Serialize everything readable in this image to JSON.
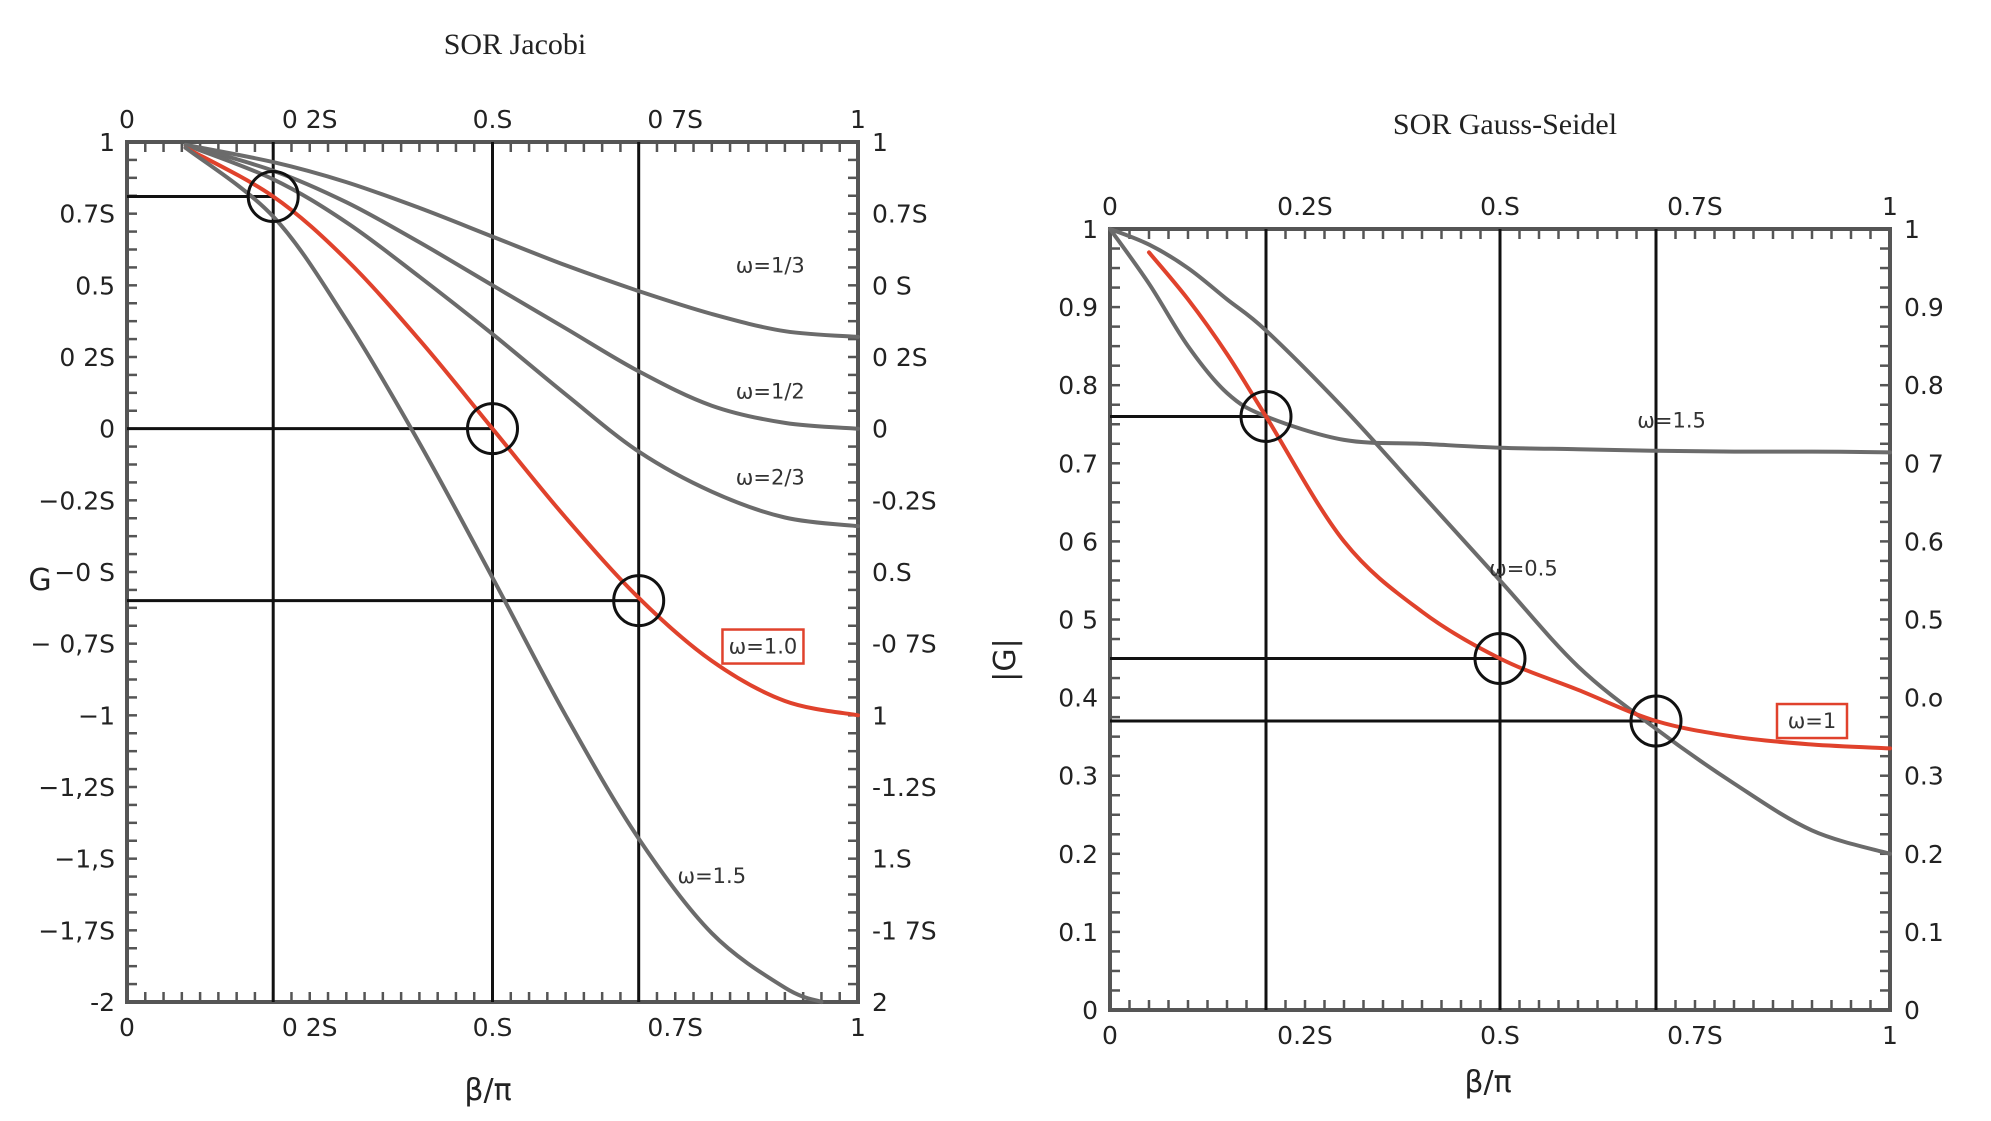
{
  "chart_data": [
    {
      "type": "line",
      "title": "SOR Jacobi",
      "xlabel": "β/π",
      "ylabel": "G",
      "xlim": [
        0,
        1
      ],
      "ylim": [
        -2,
        1
      ],
      "x_ticks": [
        0,
        0.25,
        0.5,
        0.75,
        1
      ],
      "x_tick_labels_bottom": [
        "0",
        "0 2S",
        "0.S",
        "0.7S",
        "1"
      ],
      "x_tick_labels_top": [
        "0",
        "0 2S",
        "0.S",
        "0 7S",
        "1"
      ],
      "y_ticks": [
        1,
        0.75,
        0.5,
        0.25,
        0,
        -0.25,
        -0.5,
        -0.75,
        -1,
        -1.25,
        -1.5,
        -1.75,
        -2
      ],
      "y_tick_labels_left": [
        "1",
        "0.7S",
        "0.5",
        "0 2S",
        "0",
        "−0.2S",
        "−0 S",
        "− 0,7S",
        "−1",
        "−1,2S",
        "−1,S",
        "−1,7S",
        "-2"
      ],
      "y_tick_labels_right": [
        "1",
        "0.7S",
        "0 S",
        "0 2S",
        "0",
        "-0.2S",
        "0.S",
        "-0 7S",
        "1",
        "-1.2S",
        "1.S",
        "-1 7S",
        "2"
      ],
      "grid": false,
      "guides": [
        {
          "x": 0.2,
          "y": 0.81
        },
        {
          "x": 0.5,
          "y": 0.0
        },
        {
          "x": 0.7,
          "y": -0.6
        }
      ],
      "series": [
        {
          "name": "ω=1/3",
          "color": "#6b6b6b",
          "label_at": [
            0.88,
            0.57
          ],
          "x": [
            0.08,
            0.2,
            0.3,
            0.4,
            0.5,
            0.6,
            0.7,
            0.8,
            0.9,
            1.0
          ],
          "y": [
            0.99,
            0.93,
            0.86,
            0.77,
            0.67,
            0.57,
            0.48,
            0.4,
            0.34,
            0.32
          ]
        },
        {
          "name": "ω=1/2",
          "color": "#6b6b6b",
          "label_at": [
            0.88,
            0.13
          ],
          "x": [
            0.08,
            0.2,
            0.3,
            0.4,
            0.5,
            0.6,
            0.7,
            0.8,
            0.9,
            1.0
          ],
          "y": [
            0.99,
            0.9,
            0.79,
            0.65,
            0.5,
            0.35,
            0.2,
            0.08,
            0.02,
            0.0
          ]
        },
        {
          "name": "ω=2/3",
          "color": "#6b6b6b",
          "label_at": [
            0.88,
            -0.17
          ],
          "x": [
            0.08,
            0.2,
            0.3,
            0.4,
            0.5,
            0.6,
            0.7,
            0.8,
            0.9,
            1.0
          ],
          "y": [
            0.99,
            0.87,
            0.72,
            0.53,
            0.33,
            0.12,
            -0.08,
            -0.22,
            -0.31,
            -0.34
          ]
        },
        {
          "name": "ω=1.0",
          "color": "#e0422c",
          "label_at": [
            0.87,
            -0.76
          ],
          "boxed": true,
          "x": [
            0.08,
            0.2,
            0.3,
            0.4,
            0.5,
            0.6,
            0.7,
            0.8,
            0.9,
            1.0
          ],
          "y": [
            0.98,
            0.81,
            0.59,
            0.31,
            0.0,
            -0.31,
            -0.59,
            -0.81,
            -0.95,
            -1.0
          ]
        },
        {
          "name": "ω=1.5",
          "color": "#6b6b6b",
          "label_at": [
            0.8,
            -1.56
          ],
          "x": [
            0.08,
            0.2,
            0.3,
            0.4,
            0.5,
            0.6,
            0.7,
            0.8,
            0.9,
            0.95
          ],
          "y": [
            0.98,
            0.74,
            0.38,
            -0.05,
            -0.52,
            -1.0,
            -1.43,
            -1.76,
            -1.95,
            -2.0
          ]
        }
      ]
    },
    {
      "type": "line",
      "title": "SOR Gauss-Seidel",
      "xlabel": "β/π",
      "ylabel": "|G|",
      "xlim": [
        0,
        1
      ],
      "ylim": [
        0,
        1
      ],
      "x_ticks": [
        0,
        0.25,
        0.5,
        0.75,
        1
      ],
      "x_tick_labels_bottom": [
        "0",
        "0.2S",
        "0.S",
        "0.7S",
        "1"
      ],
      "x_tick_labels_top": [
        "0",
        "0.2S",
        "0.S",
        "0.7S",
        "1"
      ],
      "y_ticks": [
        1,
        0.9,
        0.8,
        0.7,
        0.6,
        0.5,
        0.4,
        0.3,
        0.2,
        0.1,
        0
      ],
      "y_tick_labels_left": [
        "1",
        "0.9",
        "0.8",
        "0.7",
        "0 6",
        "0 5",
        "0.4",
        "0.3",
        "0.2",
        "0.1",
        "0"
      ],
      "y_tick_labels_right": [
        "1",
        "0.9",
        "0.8",
        "0 7",
        "0.6",
        "0.5",
        "0.o",
        "0.3",
        "0.2",
        "0.1",
        "0"
      ],
      "grid": false,
      "guides": [
        {
          "x": 0.2,
          "y": 0.76
        },
        {
          "x": 0.5,
          "y": 0.45
        },
        {
          "x": 0.7,
          "y": 0.37
        }
      ],
      "series": [
        {
          "name": "ω=1.5",
          "color": "#6b6b6b",
          "label_at": [
            0.72,
            0.755
          ],
          "x": [
            0.0,
            0.05,
            0.1,
            0.15,
            0.2,
            0.3,
            0.4,
            0.5,
            0.6,
            0.7,
            0.8,
            0.9,
            1.0
          ],
          "y": [
            1.0,
            0.93,
            0.85,
            0.79,
            0.76,
            0.73,
            0.725,
            0.72,
            0.718,
            0.716,
            0.715,
            0.715,
            0.714
          ]
        },
        {
          "name": "ω=0.5",
          "color": "#6b6b6b",
          "label_at": [
            0.53,
            0.565
          ],
          "x": [
            0.0,
            0.05,
            0.1,
            0.15,
            0.2,
            0.3,
            0.4,
            0.5,
            0.6,
            0.7,
            0.8,
            0.9,
            1.0
          ],
          "y": [
            1.0,
            0.98,
            0.95,
            0.91,
            0.87,
            0.77,
            0.66,
            0.55,
            0.44,
            0.36,
            0.29,
            0.23,
            0.2
          ]
        },
        {
          "name": "ω=1",
          "color": "#e0422c",
          "label_at": [
            0.9,
            0.37
          ],
          "boxed": true,
          "x": [
            0.05,
            0.1,
            0.15,
            0.2,
            0.3,
            0.4,
            0.5,
            0.6,
            0.7,
            0.8,
            0.9,
            1.0
          ],
          "y": [
            0.97,
            0.91,
            0.84,
            0.76,
            0.6,
            0.51,
            0.45,
            0.41,
            0.37,
            0.35,
            0.34,
            0.335
          ]
        }
      ]
    }
  ]
}
